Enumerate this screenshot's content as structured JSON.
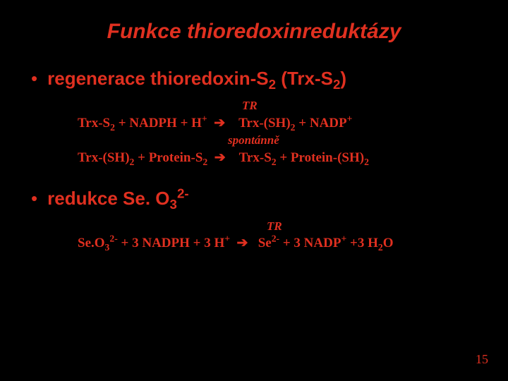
{
  "colors": {
    "background": "#000000",
    "text": "#e03020"
  },
  "title": "Funkce thioredoxinreduktázy",
  "bullets": {
    "b1": "regenerace thioredoxin-S",
    "b1_sub": "2",
    "b1_tail": "  (Trx-S",
    "b1_sub2": "2",
    "b1_close": ")",
    "b2": "redukce Se. O",
    "b2_sub": "3",
    "b2_sup": "2-"
  },
  "eq": {
    "cat_tr": "TR",
    "cat_spont": "spontánně",
    "r1_left": "Trx-S",
    "r1_s2": "2",
    "r1_mid": " + NADPH + H",
    "r1_plus": "+",
    "arrow": "➔",
    "r1_right_a": "Trx-(SH)",
    "r1_right_sub": "2",
    "r1_right_b": " + NADP",
    "r1_right_sup": "+",
    "r2_left_a": "Trx-(SH)",
    "r2_left_sub": "2",
    "r2_left_b": " + Protein-S",
    "r2_left_sub2": "2",
    "r2_right_a": "Trx-S",
    "r2_right_sub": "2",
    "r2_right_b": " + Protein-(SH)",
    "r2_right_sub2": "2",
    "r3_left_a": "Se.O",
    "r3_left_sub": "3",
    "r3_left_sup": "2-",
    "r3_left_b": " + 3 NADPH + 3 H",
    "r3_left_sup2": "+",
    "r3_right_a": "Se",
    "r3_right_sup": "2-",
    "r3_right_b": " + 3 NADP",
    "r3_right_sup2": "+",
    "r3_right_c": " +3 H",
    "r3_right_sub2": "2",
    "r3_right_d": "O"
  },
  "pagenum": "15"
}
